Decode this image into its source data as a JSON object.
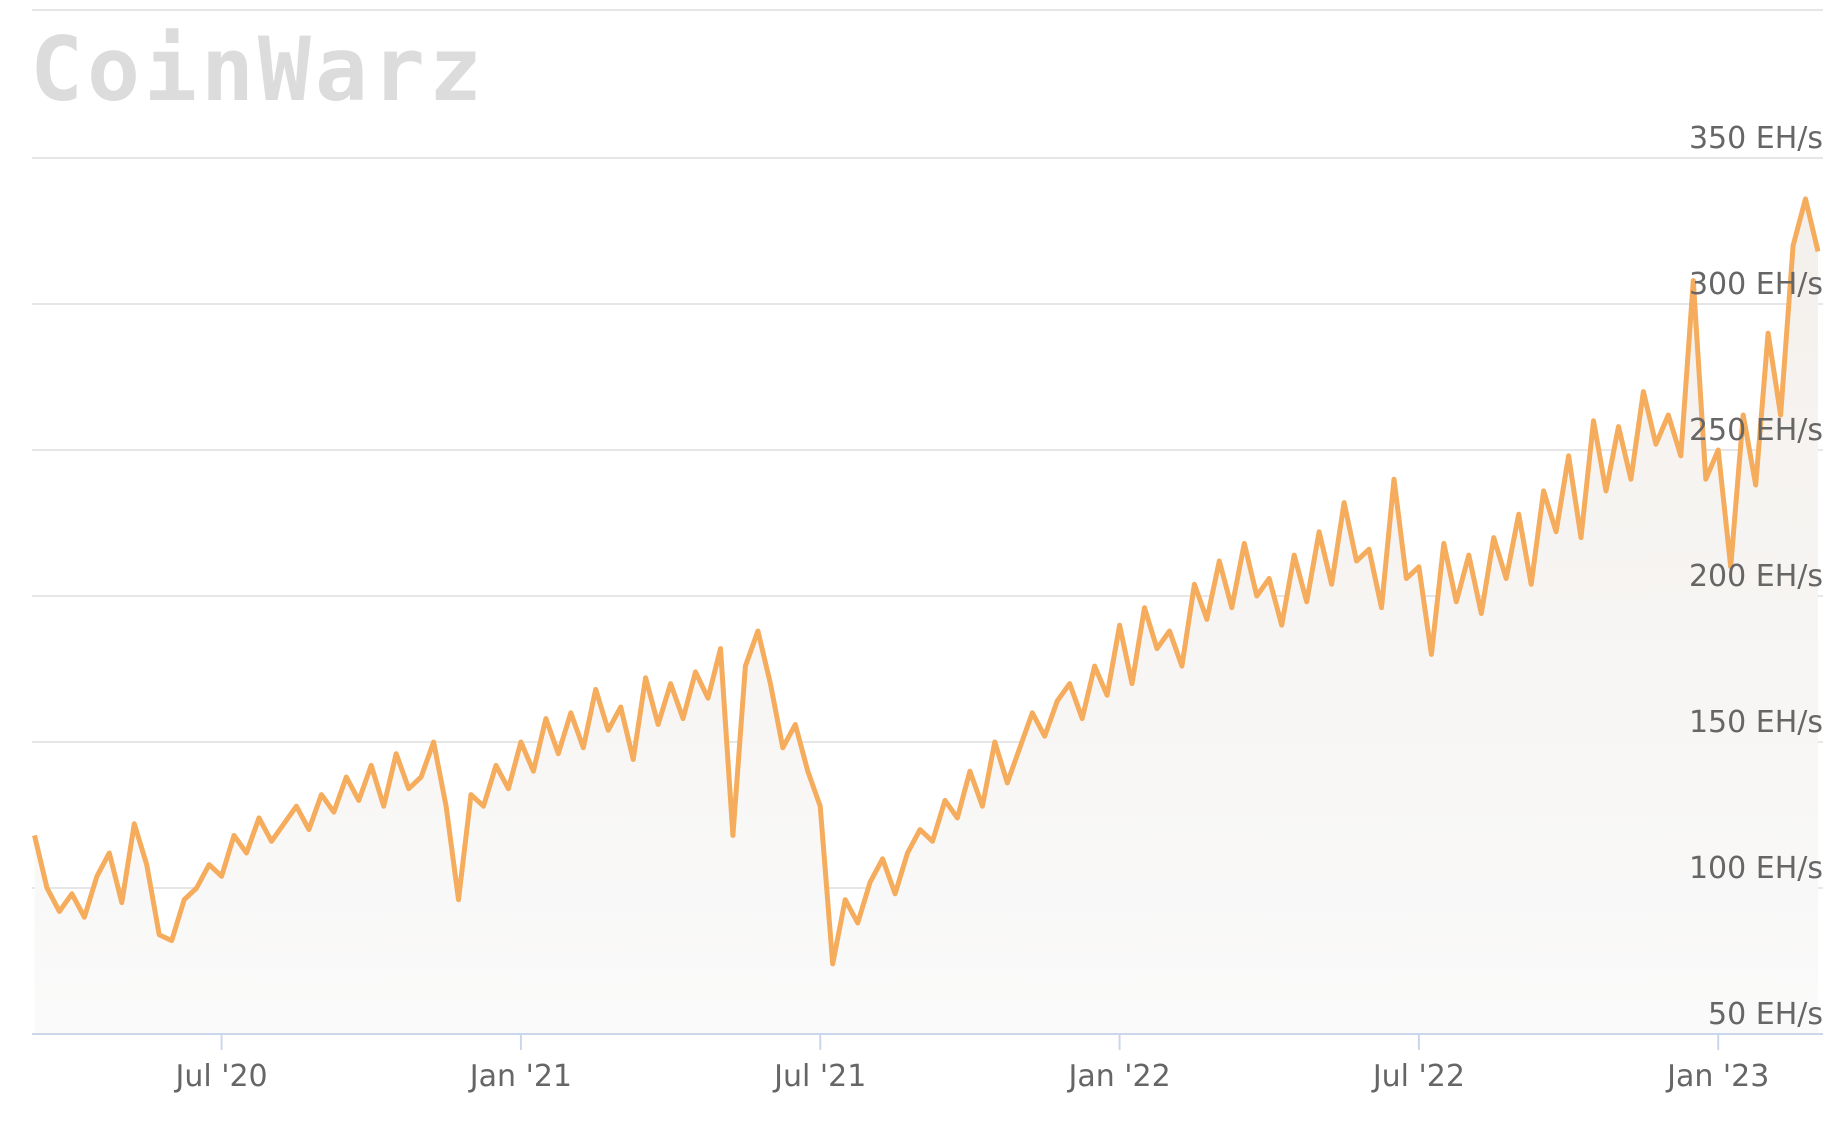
{
  "chart_data": {
    "type": "area",
    "watermark": "CoinWarz",
    "color": "#f5ac5c",
    "x": [
      2.25,
      2.5,
      2.75,
      3,
      3.25,
      3.5,
      3.75,
      4,
      4.25,
      4.5,
      4.75,
      5,
      5.25,
      5.5,
      5.75,
      6,
      6.25,
      6.5,
      6.75,
      7,
      7.25,
      7.5,
      7.75,
      8,
      8.25,
      8.5,
      8.75,
      9,
      9.25,
      9.5,
      9.75,
      10,
      10.25,
      10.5,
      10.75,
      11,
      11.25,
      11.5,
      11.75,
      12,
      12.25,
      12.5,
      12.75,
      13,
      13.25,
      13.5,
      13.75,
      14,
      14.25,
      14.5,
      14.75,
      15,
      15.25,
      15.5,
      15.75,
      16,
      16.25,
      16.5,
      16.75,
      17,
      17.25,
      17.5,
      17.75,
      18,
      18.25,
      18.5,
      18.75,
      19,
      19.25,
      19.5,
      19.75,
      20,
      20.25,
      20.5,
      20.75,
      21,
      21.25,
      21.5,
      21.75,
      22,
      22.25,
      22.5,
      22.75,
      23,
      23.25,
      23.5,
      23.75,
      24,
      24.25,
      24.5,
      24.75,
      25,
      25.25,
      25.5,
      25.75,
      26,
      26.25,
      26.5,
      26.75,
      27,
      27.25,
      27.5,
      27.75,
      28,
      28.25,
      28.5,
      28.75,
      29,
      29.25,
      29.5,
      29.75,
      30,
      30.25,
      30.5,
      30.75,
      31,
      31.25,
      31.5,
      31.75,
      32,
      32.25,
      32.5,
      32.75,
      33,
      33.25,
      33.5,
      33.75,
      34,
      34.25,
      34.5,
      34.75,
      35,
      35.25,
      35.5,
      35.75,
      36,
      36.25,
      36.5,
      36.75,
      37,
      37.25,
      37.5,
      37.75,
      38
    ],
    "values": [
      118,
      100,
      92,
      98,
      90,
      104,
      112,
      95,
      122,
      108,
      84,
      82,
      96,
      100,
      108,
      104,
      118,
      112,
      124,
      116,
      122,
      128,
      120,
      132,
      126,
      138,
      130,
      142,
      128,
      146,
      134,
      138,
      150,
      128,
      96,
      132,
      128,
      142,
      134,
      150,
      140,
      158,
      146,
      160,
      148,
      168,
      154,
      162,
      144,
      172,
      156,
      170,
      158,
      174,
      165,
      182,
      118,
      176,
      188,
      170,
      148,
      156,
      140,
      128,
      74,
      96,
      88,
      102,
      110,
      98,
      112,
      120,
      116,
      130,
      124,
      140,
      128,
      150,
      136,
      148,
      160,
      152,
      164,
      170,
      158,
      176,
      166,
      190,
      170,
      196,
      182,
      188,
      176,
      204,
      192,
      212,
      196,
      218,
      200,
      206,
      190,
      214,
      198,
      222,
      204,
      232,
      212,
      216,
      196,
      240,
      206,
      210,
      180,
      218,
      198,
      214,
      194,
      220,
      206,
      228,
      204,
      236,
      222,
      248,
      220,
      260,
      236,
      258,
      240,
      270,
      252,
      262,
      248,
      308,
      240,
      250,
      210,
      262,
      238,
      290,
      262,
      320,
      336,
      318
    ],
    "xlim": [
      2.2,
      38.1
    ],
    "xticks": [
      {
        "value": 6,
        "label": "Jul '20"
      },
      {
        "value": 12,
        "label": "Jan '21"
      },
      {
        "value": 18,
        "label": "Jul '21"
      },
      {
        "value": 24,
        "label": "Jan '22"
      },
      {
        "value": 30,
        "label": "Jul '22"
      },
      {
        "value": 36,
        "label": "Jan '23"
      }
    ],
    "ylim": [
      50,
      400
    ],
    "yticks": [
      {
        "value": 50,
        "label": "50 EH/s"
      },
      {
        "value": 100,
        "label": "100 EH/s"
      },
      {
        "value": 150,
        "label": "150 EH/s"
      },
      {
        "value": 200,
        "label": "200 EH/s"
      },
      {
        "value": 250,
        "label": "250 EH/s"
      },
      {
        "value": 300,
        "label": "300 EH/s"
      },
      {
        "value": 350,
        "label": "350 EH/s"
      }
    ],
    "grid": true
  }
}
